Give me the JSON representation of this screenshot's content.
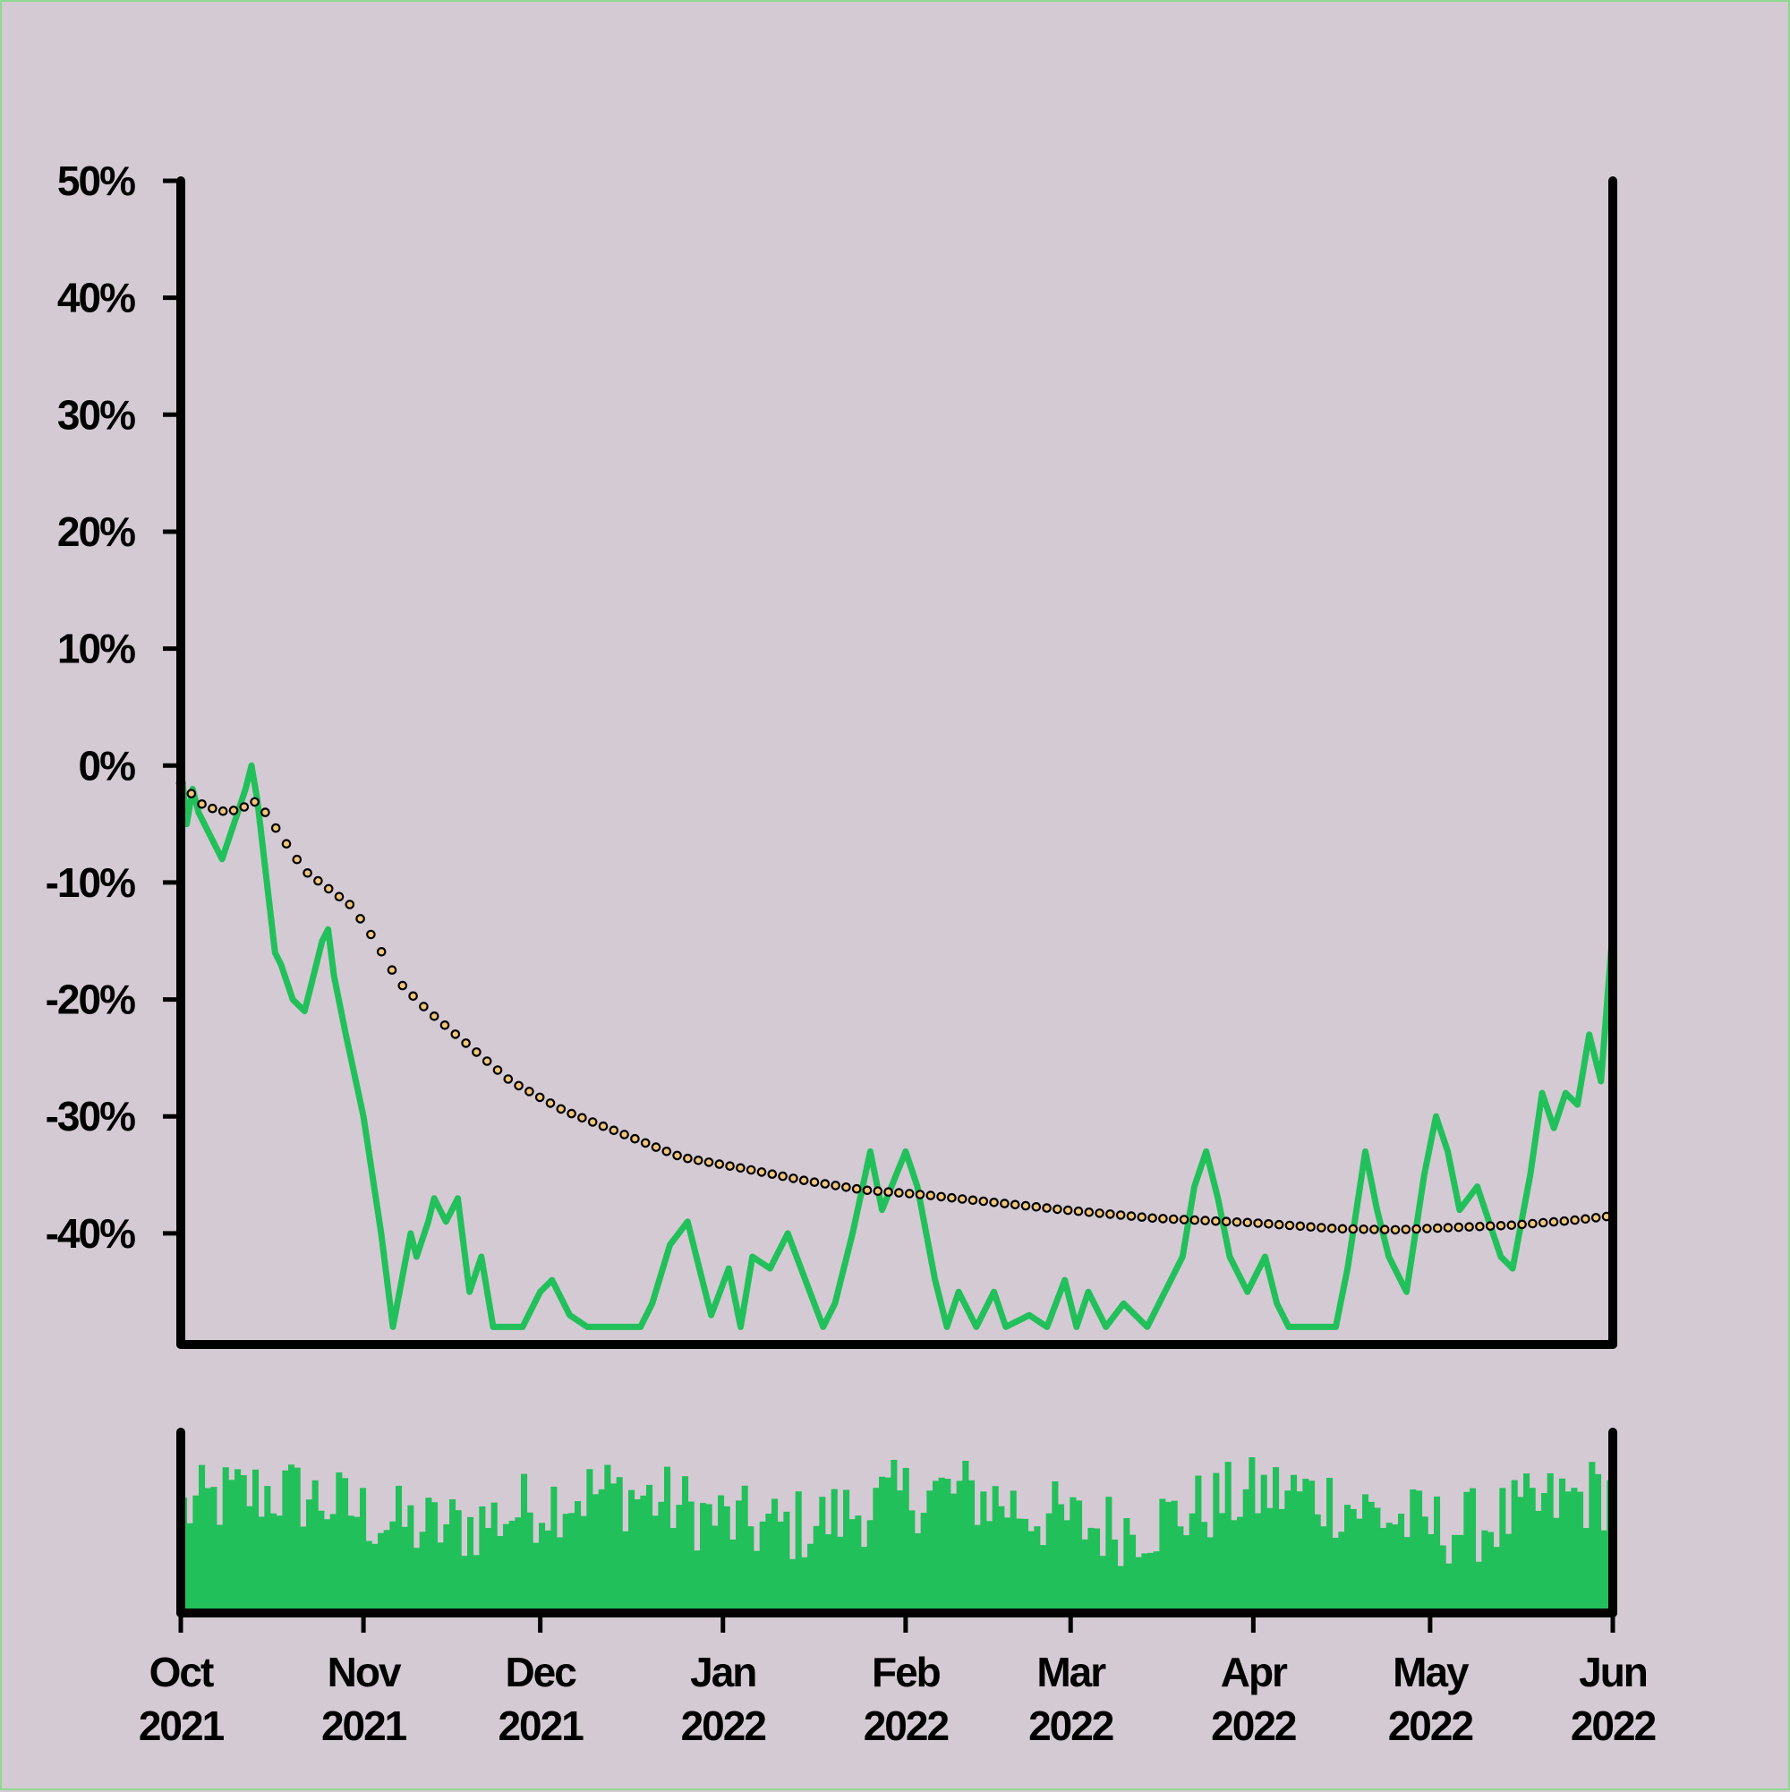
{
  "chart_data": {
    "type": "line",
    "title": "",
    "xlabel": "",
    "ylabel": "",
    "x_range": [
      "2021-10-01",
      "2022-06-01"
    ],
    "ylim": [
      -49.5,
      50
    ],
    "y_ticks": [
      {
        "value": 50,
        "label": "50%"
      },
      {
        "value": 40,
        "label": "40%"
      },
      {
        "value": 30,
        "label": "30%"
      },
      {
        "value": 20,
        "label": "20%"
      },
      {
        "value": 10,
        "label": "10%"
      },
      {
        "value": 0,
        "label": "0%"
      },
      {
        "value": -10,
        "label": "-10%"
      },
      {
        "value": -20,
        "label": "-20%"
      },
      {
        "value": -30,
        "label": "-30%"
      },
      {
        "value": -40,
        "label": "-40%"
      }
    ],
    "x_ticks": [
      {
        "date": "2021-10-01",
        "month": "Oct",
        "year": "2021"
      },
      {
        "date": "2021-11-01",
        "month": "Nov",
        "year": "2021"
      },
      {
        "date": "2021-12-01",
        "month": "Dec",
        "year": "2021"
      },
      {
        "date": "2022-01-01",
        "month": "Jan",
        "year": "2022"
      },
      {
        "date": "2022-02-01",
        "month": "Feb",
        "year": "2022"
      },
      {
        "date": "2022-03-01",
        "month": "Mar",
        "year": "2022"
      },
      {
        "date": "2022-04-01",
        "month": "Apr",
        "year": "2022"
      },
      {
        "date": "2022-05-01",
        "month": "May",
        "year": "2022"
      },
      {
        "date": "2022-06-01",
        "month": "Jun",
        "year": "2022"
      }
    ],
    "grid": false,
    "legend": "none",
    "colors": {
      "background": "#d4cad3",
      "price_line": "#22c05a",
      "trend_marker_fill": "#f3c77a",
      "axis": "#000000",
      "volume_bars": "#22c05a"
    },
    "series": [
      {
        "role": "price",
        "style": "solid-line",
        "points": [
          [
            "2021-10-01",
            0
          ],
          [
            "2021-10-02",
            -5
          ],
          [
            "2021-10-03",
            -2
          ],
          [
            "2021-10-04",
            -4
          ],
          [
            "2021-10-06",
            -6
          ],
          [
            "2021-10-08",
            -8
          ],
          [
            "2021-10-10",
            -5
          ],
          [
            "2021-10-12",
            -2
          ],
          [
            "2021-10-13",
            0
          ],
          [
            "2021-10-14",
            -3
          ],
          [
            "2021-10-17",
            -16
          ],
          [
            "2021-10-18",
            -17
          ],
          [
            "2021-10-20",
            -20
          ],
          [
            "2021-10-22",
            -21
          ],
          [
            "2021-10-23",
            -19
          ],
          [
            "2021-10-25",
            -15
          ],
          [
            "2021-10-26",
            -14
          ],
          [
            "2021-10-27",
            -18
          ],
          [
            "2021-10-29",
            -23
          ],
          [
            "2021-11-01",
            -30
          ],
          [
            "2021-11-04",
            -40
          ],
          [
            "2021-11-06",
            -48
          ],
          [
            "2021-11-09",
            -40
          ],
          [
            "2021-11-10",
            -42
          ],
          [
            "2021-11-12",
            -39
          ],
          [
            "2021-11-13",
            -37
          ],
          [
            "2021-11-15",
            -39
          ],
          [
            "2021-11-17",
            -37
          ],
          [
            "2021-11-19",
            -45
          ],
          [
            "2021-11-21",
            -42
          ],
          [
            "2021-11-23",
            -48
          ],
          [
            "2021-11-28",
            -48
          ],
          [
            "2021-12-01",
            -45
          ],
          [
            "2021-12-03",
            -44
          ],
          [
            "2021-12-06",
            -47
          ],
          [
            "2021-12-09",
            -48
          ],
          [
            "2021-12-14",
            -48
          ],
          [
            "2021-12-18",
            -48
          ],
          [
            "2021-12-20",
            -46
          ],
          [
            "2021-12-23",
            -41
          ],
          [
            "2021-12-26",
            -39
          ],
          [
            "2021-12-28",
            -43
          ],
          [
            "2021-12-30",
            -47
          ],
          [
            "2022-01-02",
            -43
          ],
          [
            "2022-01-04",
            -48
          ],
          [
            "2022-01-06",
            -42
          ],
          [
            "2022-01-09",
            -43
          ],
          [
            "2022-01-12",
            -40
          ],
          [
            "2022-01-15",
            -44
          ],
          [
            "2022-01-18",
            -48
          ],
          [
            "2022-01-20",
            -46
          ],
          [
            "2022-01-23",
            -40
          ],
          [
            "2022-01-26",
            -33
          ],
          [
            "2022-01-28",
            -38
          ],
          [
            "2022-02-01",
            -33
          ],
          [
            "2022-02-03",
            -36
          ],
          [
            "2022-02-06",
            -44
          ],
          [
            "2022-02-08",
            -48
          ],
          [
            "2022-02-10",
            -45
          ],
          [
            "2022-02-13",
            -48
          ],
          [
            "2022-02-16",
            -45
          ],
          [
            "2022-02-18",
            -48
          ],
          [
            "2022-02-22",
            -47
          ],
          [
            "2022-02-25",
            -48
          ],
          [
            "2022-02-28",
            -44
          ],
          [
            "2022-03-02",
            -48
          ],
          [
            "2022-03-04",
            -45
          ],
          [
            "2022-03-07",
            -48
          ],
          [
            "2022-03-10",
            -46
          ],
          [
            "2022-03-14",
            -48
          ],
          [
            "2022-03-17",
            -45
          ],
          [
            "2022-03-20",
            -42
          ],
          [
            "2022-03-22",
            -36
          ],
          [
            "2022-03-24",
            -33
          ],
          [
            "2022-03-26",
            -37
          ],
          [
            "2022-03-28",
            -42
          ],
          [
            "2022-03-31",
            -45
          ],
          [
            "2022-04-03",
            -42
          ],
          [
            "2022-04-05",
            -46
          ],
          [
            "2022-04-07",
            -48
          ],
          [
            "2022-04-12",
            -48
          ],
          [
            "2022-04-15",
            -48
          ],
          [
            "2022-04-17",
            -43
          ],
          [
            "2022-04-20",
            -33
          ],
          [
            "2022-04-22",
            -38
          ],
          [
            "2022-04-24",
            -42
          ],
          [
            "2022-04-27",
            -45
          ],
          [
            "2022-04-30",
            -35
          ],
          [
            "2022-05-02",
            -30
          ],
          [
            "2022-05-04",
            -33
          ],
          [
            "2022-05-06",
            -38
          ],
          [
            "2022-05-09",
            -36
          ],
          [
            "2022-05-11",
            -39
          ],
          [
            "2022-05-13",
            -42
          ],
          [
            "2022-05-15",
            -43
          ],
          [
            "2022-05-18",
            -35
          ],
          [
            "2022-05-20",
            -28
          ],
          [
            "2022-05-22",
            -31
          ],
          [
            "2022-05-24",
            -28
          ],
          [
            "2022-05-26",
            -29
          ],
          [
            "2022-05-28",
            -23
          ],
          [
            "2022-05-30",
            -27
          ],
          [
            "2022-06-01",
            -14
          ]
        ]
      },
      {
        "role": "trend",
        "style": "dotted-markers",
        "points": [
          [
            "2021-10-01",
            -1.5
          ],
          [
            "2021-10-05",
            -3.5
          ],
          [
            "2021-10-09",
            -4
          ],
          [
            "2021-10-12",
            -3.5
          ],
          [
            "2021-10-14",
            -3
          ],
          [
            "2021-10-18",
            -6
          ],
          [
            "2021-10-22",
            -9
          ],
          [
            "2021-10-26",
            -10.5
          ],
          [
            "2021-10-30",
            -12
          ],
          [
            "2021-11-03",
            -15
          ],
          [
            "2021-11-07",
            -18.5
          ],
          [
            "2021-11-12",
            -21
          ],
          [
            "2021-11-19",
            -24
          ],
          [
            "2021-11-26",
            -27
          ],
          [
            "2021-12-05",
            -29.5
          ],
          [
            "2021-12-15",
            -31.5
          ],
          [
            "2021-12-25",
            -33.5
          ],
          [
            "2022-01-05",
            -34.5
          ],
          [
            "2022-01-15",
            -35.5
          ],
          [
            "2022-01-25",
            -36.3
          ],
          [
            "2022-02-04",
            -36.7
          ],
          [
            "2022-02-15",
            -37.3
          ],
          [
            "2022-02-28",
            -38
          ],
          [
            "2022-03-15",
            -38.7
          ],
          [
            "2022-04-01",
            -39.1
          ],
          [
            "2022-04-15",
            -39.6
          ],
          [
            "2022-04-25",
            -39.7
          ],
          [
            "2022-05-05",
            -39.5
          ],
          [
            "2022-05-15",
            -39.3
          ],
          [
            "2022-05-25",
            -38.9
          ],
          [
            "2022-06-01",
            -38.5
          ]
        ]
      }
    ],
    "volume": {
      "type": "bar",
      "count": 240,
      "base": 0.5,
      "amplitude": 0.45
    }
  }
}
